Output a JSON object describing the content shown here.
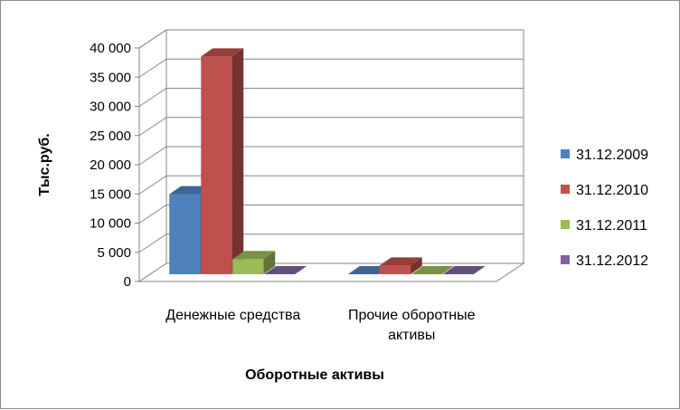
{
  "chart_data": {
    "type": "bar",
    "title": "",
    "xlabel": "Оборотные активы",
    "ylabel": "Тыс.руб.",
    "ylim": [
      0,
      40000
    ],
    "yticks": [
      0,
      5000,
      10000,
      15000,
      20000,
      25000,
      30000,
      35000,
      40000
    ],
    "ytick_labels": [
      "0",
      "5 000",
      "10 000",
      "15 000",
      "20 000",
      "25 000",
      "30 000",
      "35 000",
      "40 000"
    ],
    "categories": [
      "Денежные средства",
      "Прочие оборотные активы"
    ],
    "category_lines": [
      [
        "Денежные средства"
      ],
      [
        "Прочие оборотные",
        "активы"
      ]
    ],
    "series": [
      {
        "name": "31.12.2009",
        "values": [
          13700,
          0
        ],
        "color": "#4F81BD"
      },
      {
        "name": "31.12.2010",
        "values": [
          37300,
          1500
        ],
        "color": "#C0504D"
      },
      {
        "name": "31.12.2011",
        "values": [
          2600,
          0
        ],
        "color": "#9BBB59"
      },
      {
        "name": "31.12.2012",
        "values": [
          0,
          0
        ],
        "color": "#8064A2"
      }
    ],
    "grid": true,
    "legend_position": "right",
    "style": "3d-clustered-column"
  }
}
